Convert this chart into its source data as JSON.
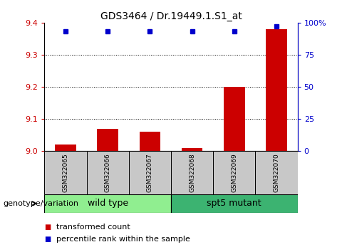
{
  "title": "GDS3464 / Dr.19449.1.S1_at",
  "samples": [
    "GSM322065",
    "GSM322066",
    "GSM322067",
    "GSM322068",
    "GSM322069",
    "GSM322070"
  ],
  "transformed_counts": [
    9.02,
    9.07,
    9.06,
    9.01,
    9.2,
    9.38
  ],
  "percentile_ranks": [
    93,
    93,
    93,
    93,
    93,
    97
  ],
  "ylim_left": [
    9.0,
    9.4
  ],
  "ylim_right": [
    0,
    100
  ],
  "yticks_left": [
    9.0,
    9.1,
    9.2,
    9.3,
    9.4
  ],
  "yticks_right": [
    0,
    25,
    50,
    75,
    100
  ],
  "ytick_labels_right": [
    "0",
    "25",
    "50",
    "75",
    "100%"
  ],
  "groups": [
    {
      "label": "wild type",
      "color": "#90EE90",
      "start": 0,
      "end": 3
    },
    {
      "label": "spt5 mutant",
      "color": "#3CB371",
      "start": 3,
      "end": 6
    }
  ],
  "bar_color": "#cc0000",
  "blue_marker_color": "#0000cc",
  "bar_width": 0.5,
  "background_color": "#ffffff",
  "grid_color": "#000000",
  "label_color_left": "#cc0000",
  "label_color_right": "#0000cc",
  "genotype_label": "genotype/variation",
  "legend_items": [
    {
      "label": "transformed count",
      "color": "#cc0000"
    },
    {
      "label": "percentile rank within the sample",
      "color": "#0000cc"
    }
  ],
  "sample_box_color": "#c8c8c8",
  "title_fontsize": 10,
  "tick_fontsize": 8,
  "label_fontsize": 8,
  "group_fontsize": 9,
  "legend_fontsize": 8
}
